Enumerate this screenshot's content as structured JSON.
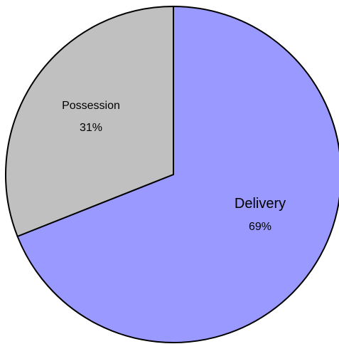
{
  "chart_data": {
    "type": "pie",
    "slices": [
      {
        "label": "Delivery",
        "value": 69,
        "value_label": "69%",
        "color": "#9999ff"
      },
      {
        "label": "Possession",
        "value": 31,
        "value_label": "31%",
        "color": "#c0c0c0"
      }
    ],
    "start": "12 o'clock",
    "direction": "clockwise",
    "stroke_color": "#000000"
  }
}
